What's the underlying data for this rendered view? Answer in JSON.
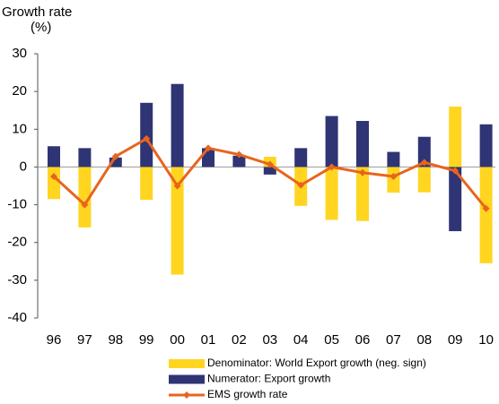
{
  "chart_data": {
    "type": "bar_line",
    "y_label": "Growth rate",
    "y_unit": "(%)",
    "categories": [
      "96",
      "97",
      "98",
      "99",
      "00",
      "01",
      "02",
      "03",
      "04",
      "05",
      "06",
      "07",
      "08",
      "09",
      "10"
    ],
    "series": [
      {
        "name": "Denominator: World Export growth (neg. sign)",
        "color": "#ffd520",
        "kind": "bar",
        "values": [
          -8.5,
          -16,
          0.3,
          -8.7,
          -28.5,
          0.5,
          0.3,
          2.7,
          -10.3,
          -14,
          -14.3,
          -6.8,
          -6.7,
          16,
          -25.5
        ]
      },
      {
        "name": "Numerator: Export growth",
        "color": "#2e3474",
        "kind": "bar",
        "values": [
          5.5,
          5,
          2.5,
          17,
          22,
          5,
          3,
          -2,
          5,
          13.5,
          12.2,
          4,
          8,
          -17,
          11.3
        ]
      },
      {
        "name": "EMS growth rate",
        "color": "#e8641e",
        "kind": "line",
        "values": [
          -2.5,
          -10,
          2.8,
          7.5,
          -5,
          5,
          3.3,
          0.7,
          -4.8,
          0,
          -1.5,
          -2.5,
          1.2,
          -1,
          -11
        ]
      }
    ],
    "ylim": [
      -40,
      30
    ],
    "yticks": [
      -40,
      -30,
      -20,
      -10,
      0,
      10,
      20,
      30
    ]
  }
}
